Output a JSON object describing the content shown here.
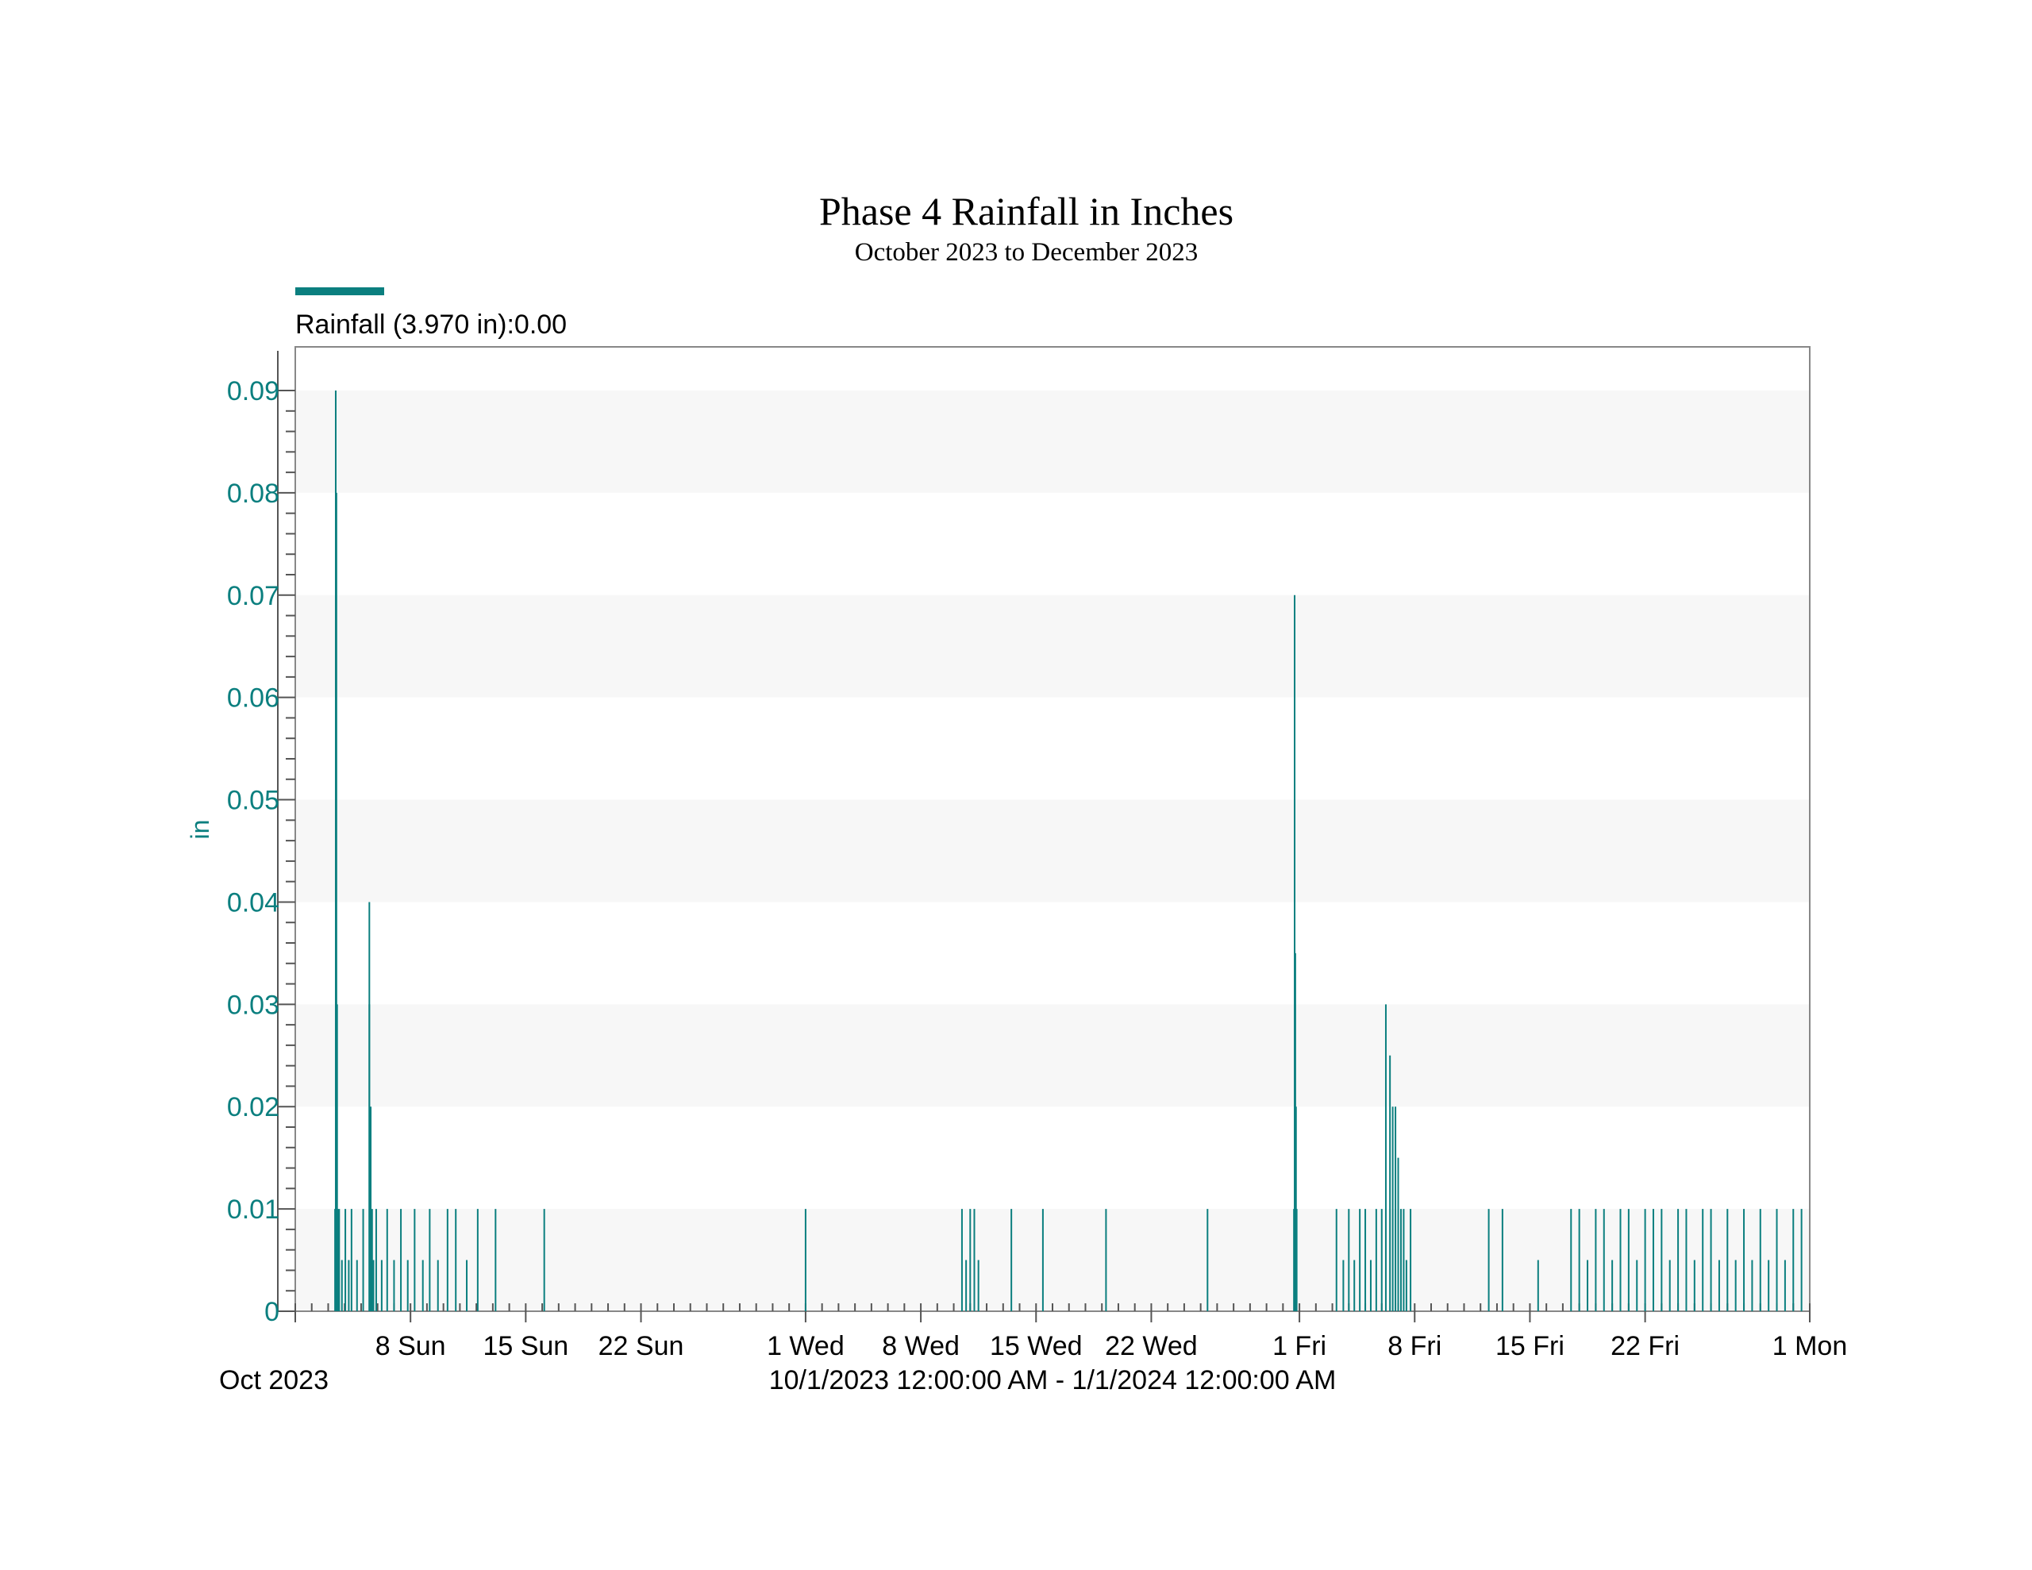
{
  "colors": {
    "series": "#0b7f7f",
    "band": "#f7f7f7",
    "axis": "#555555",
    "text": "#000000"
  },
  "chart_data": {
    "type": "bar",
    "title": "Phase 4 Rainfall in Inches",
    "subtitle": "October 2023 to December 2023",
    "ylabel": "in",
    "xrange_label": "10/1/2023 12:00:00 AM - 1/1/2024 12:00:00 AM",
    "xlim": [
      "2023-10-01",
      "2024-01-01"
    ],
    "ylim": [
      0,
      0.095
    ],
    "y_ticks": [
      "0",
      "0.01",
      "0.02",
      "0.03",
      "0.04",
      "0.05",
      "0.06",
      "0.07",
      "0.08",
      "0.09"
    ],
    "x_ticks": [
      {
        "date": "2023-10-01",
        "label": "Oct 2023"
      },
      {
        "date": "2023-10-08",
        "label": "8 Sun"
      },
      {
        "date": "2023-10-15",
        "label": "15 Sun"
      },
      {
        "date": "2023-10-22",
        "label": "22 Sun"
      },
      {
        "date": "2023-11-01",
        "label": "1 Wed"
      },
      {
        "date": "2023-11-08",
        "label": "8 Wed"
      },
      {
        "date": "2023-11-15",
        "label": "15 Wed"
      },
      {
        "date": "2023-11-22",
        "label": "22 Wed"
      },
      {
        "date": "2023-12-01",
        "label": "1 Fri"
      },
      {
        "date": "2023-12-08",
        "label": "8 Fri"
      },
      {
        "date": "2023-12-15",
        "label": "15 Fri"
      },
      {
        "date": "2023-12-22",
        "label": "22 Fri"
      },
      {
        "date": "2024-01-01",
        "label": "1 Mon"
      }
    ],
    "grid": "alternating horizontal bands",
    "legend": {
      "position": "top-left",
      "label": "Rainfall (3.970 in):0.00"
    },
    "series": [
      {
        "x": [
          "2023-10-03 10:00",
          "2023-10-03 11:00",
          "2023-10-03 12:00",
          "2023-10-03 13:00",
          "2023-10-03 14:00",
          "2023-10-03 16:00",
          "2023-10-03 20:00",
          "2023-10-04 01:00",
          "2023-10-04 06:00",
          "2023-10-04 10:00",
          "2023-10-04 18:00",
          "2023-10-05 03:00",
          "2023-10-05 12:00",
          "2023-10-05 12:00",
          "2023-10-05 14:00",
          "2023-10-05 16:00",
          "2023-10-05 18:00",
          "2023-10-05 22:00",
          "2023-10-06 06:00",
          "2023-10-06 14:00",
          "2023-10-07 00:00",
          "2023-10-07 10:00",
          "2023-10-07 20:00",
          "2023-10-08 06:00",
          "2023-10-08 18:00",
          "2023-10-09 04:00",
          "2023-10-09 16:00",
          "2023-10-10 06:00",
          "2023-10-10 18:00",
          "2023-10-11 10:00",
          "2023-10-12 02:00",
          "2023-10-13 04:00",
          "2023-10-16 03:00",
          "2023-11-01 00:00",
          "2023-11-10 12:00",
          "2023-11-10 18:00",
          "2023-11-11 00:00",
          "2023-11-11 06:00",
          "2023-11-11 12:00",
          "2023-11-13 12:00",
          "2023-11-15 10:00",
          "2023-11-19 06:00",
          "2023-11-25 10:00",
          "2023-11-30 16:00",
          "2023-11-30 17:00",
          "2023-11-30 18:00",
          "2023-11-30 19:00",
          "2023-11-30 20:00",
          "2023-12-03 06:00",
          "2023-12-03 16:00",
          "2023-12-04 00:00",
          "2023-12-04 08:00",
          "2023-12-04 16:00",
          "2023-12-05 00:00",
          "2023-12-05 08:00",
          "2023-12-05 16:00",
          "2023-12-06 00:00",
          "2023-12-06 06:00",
          "2023-12-06 12:00",
          "2023-12-06 16:00",
          "2023-12-06 20:00",
          "2023-12-07 00:00",
          "2023-12-07 04:00",
          "2023-12-07 08:00",
          "2023-12-07 12:00",
          "2023-12-07 18:00",
          "2023-12-12 12:00",
          "2023-12-13 08:00",
          "2023-12-15 12:00",
          "2023-12-17 12:00",
          "2023-12-18 00:00",
          "2023-12-18 12:00",
          "2023-12-19 00:00",
          "2023-12-19 12:00",
          "2023-12-20 00:00",
          "2023-12-20 12:00",
          "2023-12-21 00:00",
          "2023-12-21 12:00",
          "2023-12-22 00:00",
          "2023-12-22 12:00",
          "2023-12-23 00:00",
          "2023-12-23 12:00",
          "2023-12-24 00:00",
          "2023-12-24 12:00",
          "2023-12-25 00:00",
          "2023-12-25 12:00",
          "2023-12-26 00:00",
          "2023-12-26 12:00",
          "2023-12-27 00:00",
          "2023-12-27 12:00",
          "2023-12-28 00:00",
          "2023-12-28 12:00",
          "2023-12-29 00:00",
          "2023-12-29 12:00",
          "2023-12-30 00:00",
          "2023-12-30 12:00",
          "2023-12-31 00:00",
          "2023-12-31 12:00"
        ],
        "values": [
          0.01,
          0.09,
          0.08,
          0.03,
          0.01,
          0.01,
          0.005,
          0.01,
          0.005,
          0.01,
          0.005,
          0.01,
          0.04,
          0.03,
          0.02,
          0.01,
          0.005,
          0.01,
          0.005,
          0.01,
          0.005,
          0.01,
          0.005,
          0.01,
          0.005,
          0.01,
          0.005,
          0.01,
          0.01,
          0.005,
          0.01,
          0.01,
          0.01,
          0.01,
          0.01,
          0.005,
          0.01,
          0.01,
          0.005,
          0.01,
          0.01,
          0.01,
          0.01,
          0.01,
          0.07,
          0.035,
          0.02,
          0.01,
          0.01,
          0.005,
          0.01,
          0.005,
          0.01,
          0.01,
          0.005,
          0.01,
          0.01,
          0.03,
          0.025,
          0.02,
          0.02,
          0.015,
          0.01,
          0.01,
          0.005,
          0.01,
          0.01,
          0.01,
          0.005,
          0.01,
          0.01,
          0.005,
          0.01,
          0.01,
          0.005,
          0.01,
          0.01,
          0.005,
          0.01,
          0.01,
          0.01,
          0.005,
          0.01,
          0.01,
          0.005,
          0.01,
          0.01,
          0.005,
          0.01,
          0.005,
          0.01,
          0.005,
          0.01,
          0.005,
          0.01,
          0.005,
          0.01,
          0.01
        ]
      }
    ]
  }
}
